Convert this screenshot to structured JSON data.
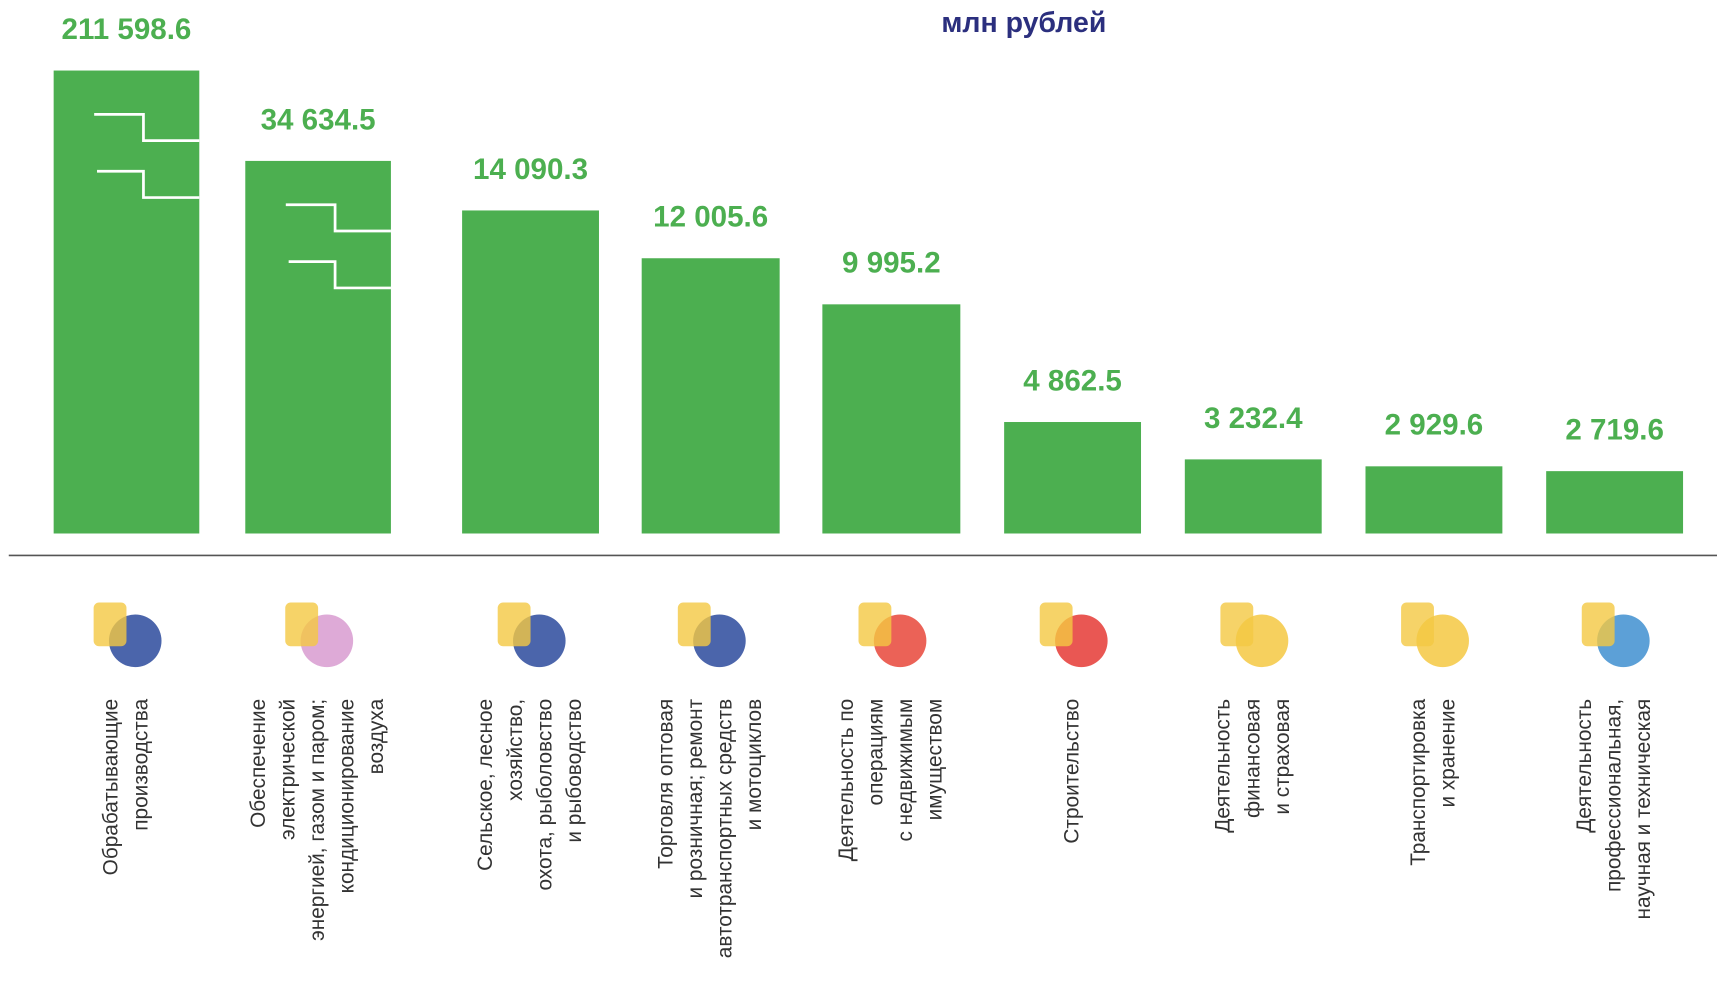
{
  "chart_data": {
    "type": "bar",
    "subtitle": "млн рублей",
    "categories": [
      "Обрабатывающие\nпроизводства",
      "Обеспечение\nэлектрической\nэнергией, газом и паром;\nкондиционирование\nвоздуха",
      "Сельское, лесное\nхозяйство,\nохота, рыболовство\nи рыбоводство",
      "Торговля оптовая\nи розничная; ремонт\nавтотранспортных средств\nи мотоциклов",
      "Деятельность по\nоперациям\nс недвижимым\nимуществом",
      "Строительство",
      "Деятельность\nфинансовая\nи страховая",
      "Транспортировка\nи хранение",
      "Деятельность\nпрофессиональная,\nнаучная и техническая"
    ],
    "values": [
      211598.6,
      34634.5,
      14090.3,
      12005.6,
      9995.2,
      4862.5,
      3232.4,
      2929.6,
      2719.6
    ],
    "value_labels": [
      "211 598.6",
      "34 634.5",
      "14 090.3",
      "12 005.6",
      "9 995.2",
      "4 862.5",
      "3 232.4",
      "2 929.6",
      "2 719.6"
    ],
    "color": "#4caf50"
  }
}
